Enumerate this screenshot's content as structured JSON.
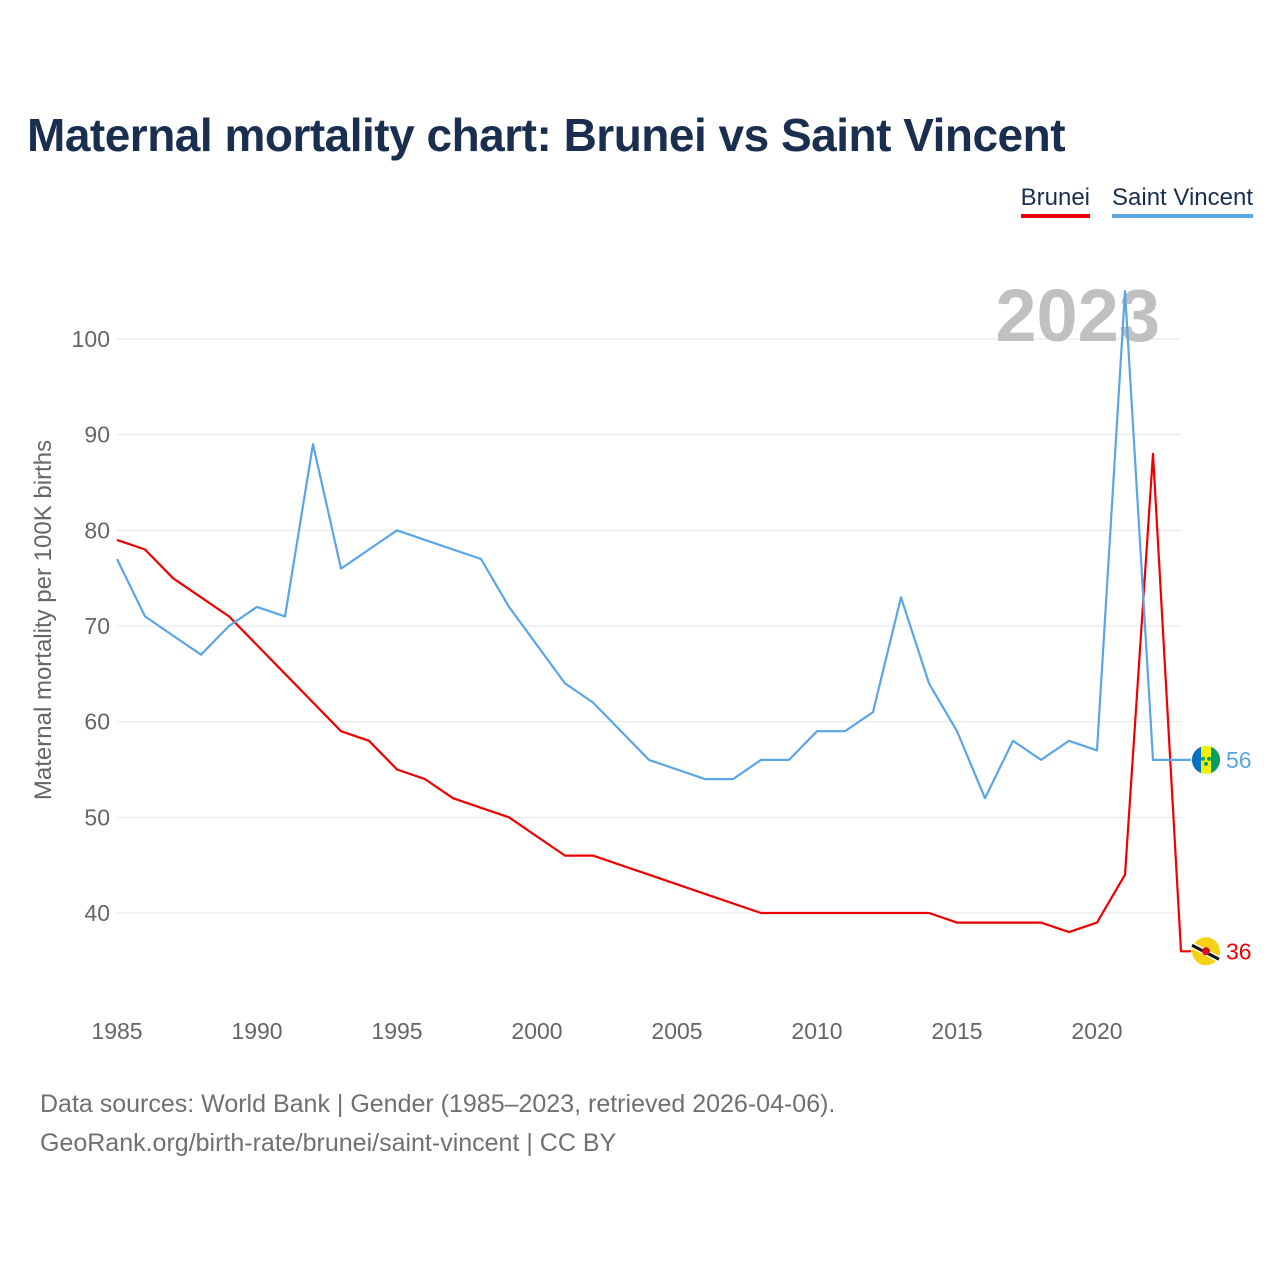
{
  "title": "Maternal mortality chart: Brunei vs Saint Vincent",
  "legend": {
    "brunei": "Brunei",
    "saint_vincent": "Saint Vincent"
  },
  "colors": {
    "brunei": "#ee0000",
    "saint_vincent": "#5aa5e6",
    "title": "#1a2e4f",
    "year_watermark": "#c0c0c0"
  },
  "year_watermark": "2023",
  "footer": {
    "line1": "Data sources: World Bank | Gender (1985–2023, retrieved 2026-04-06).",
    "line2": "GeoRank.org/birth-rate/brunei/saint-vincent | CC BY"
  },
  "chart_data": {
    "type": "line",
    "title": "Maternal mortality chart: Brunei vs Saint Vincent",
    "xlabel": "",
    "ylabel": "Maternal mortality per 100K births",
    "xlim": [
      1985,
      2023
    ],
    "ylim": [
      30,
      108
    ],
    "x_ticks": [
      1985,
      1990,
      1995,
      2000,
      2005,
      2010,
      2015,
      2020
    ],
    "y_ticks": [
      40,
      50,
      60,
      70,
      80,
      90,
      100
    ],
    "grid": "horizontal",
    "legend_position": "top-right",
    "x": [
      1985,
      1986,
      1987,
      1988,
      1989,
      1990,
      1991,
      1992,
      1993,
      1994,
      1995,
      1996,
      1997,
      1998,
      1999,
      2000,
      2001,
      2002,
      2003,
      2004,
      2005,
      2006,
      2007,
      2008,
      2009,
      2010,
      2011,
      2012,
      2013,
      2014,
      2015,
      2016,
      2017,
      2018,
      2019,
      2020,
      2021,
      2022,
      2023
    ],
    "series": [
      {
        "name": "Brunei",
        "color": "#ee0000",
        "end_label": "36",
        "values": [
          79,
          78,
          75,
          73,
          71,
          68,
          65,
          62,
          59,
          58,
          55,
          54,
          52,
          51,
          50,
          48,
          46,
          46,
          45,
          44,
          43,
          42,
          41,
          40,
          40,
          40,
          40,
          40,
          40,
          40,
          39,
          39,
          39,
          39,
          38,
          39,
          44,
          88,
          36
        ]
      },
      {
        "name": "Saint Vincent",
        "color": "#5aa5e6",
        "end_label": "56",
        "values": [
          77,
          71,
          69,
          67,
          70,
          72,
          71,
          89,
          76,
          78,
          80,
          79,
          78,
          77,
          72,
          68,
          64,
          62,
          59,
          56,
          55,
          54,
          54,
          56,
          56,
          59,
          59,
          61,
          73,
          64,
          59,
          52,
          58,
          56,
          58,
          57,
          105,
          56,
          56
        ]
      }
    ]
  }
}
